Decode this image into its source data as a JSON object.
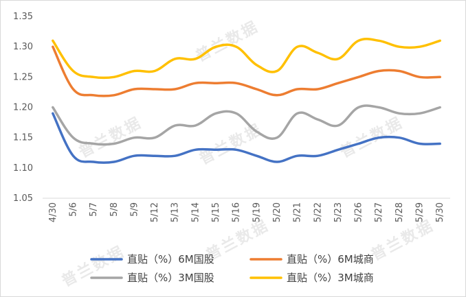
{
  "chart_data": {
    "type": "line",
    "title": "",
    "xlabel": "",
    "ylabel": "",
    "ylim": [
      1.05,
      1.35
    ],
    "yticks": [
      "1.05",
      "1.10",
      "1.15",
      "1.20",
      "1.25",
      "1.30",
      "1.35"
    ],
    "categories": [
      "4/30",
      "5/6",
      "5/7",
      "5/8",
      "5/9",
      "5/12",
      "5/13",
      "5/14",
      "5/15",
      "5/16",
      "5/19",
      "5/20",
      "5/21",
      "5/22",
      "5/23",
      "5/26",
      "5/27",
      "5/28",
      "5/29",
      "5/30"
    ],
    "series": [
      {
        "name": "直贴（%）6M国股",
        "color": "#4472c4",
        "values": [
          1.19,
          1.12,
          1.11,
          1.11,
          1.12,
          1.12,
          1.12,
          1.13,
          1.13,
          1.13,
          1.12,
          1.11,
          1.12,
          1.12,
          1.13,
          1.14,
          1.15,
          1.15,
          1.14,
          1.14
        ]
      },
      {
        "name": "直贴（%）6M城商",
        "color": "#ed7d31",
        "values": [
          1.3,
          1.23,
          1.22,
          1.22,
          1.23,
          1.23,
          1.23,
          1.24,
          1.24,
          1.24,
          1.23,
          1.22,
          1.23,
          1.23,
          1.24,
          1.25,
          1.26,
          1.26,
          1.25,
          1.25
        ]
      },
      {
        "name": "直贴（%）3M国股",
        "color": "#a5a5a5",
        "values": [
          1.2,
          1.15,
          1.14,
          1.14,
          1.15,
          1.15,
          1.17,
          1.17,
          1.19,
          1.19,
          1.16,
          1.15,
          1.19,
          1.18,
          1.17,
          1.2,
          1.2,
          1.19,
          1.19,
          1.2
        ]
      },
      {
        "name": "直贴（%）3M城商",
        "color": "#ffc000",
        "values": [
          1.31,
          1.26,
          1.25,
          1.25,
          1.26,
          1.26,
          1.28,
          1.28,
          1.3,
          1.3,
          1.27,
          1.26,
          1.3,
          1.29,
          1.28,
          1.31,
          1.31,
          1.3,
          1.3,
          1.31
        ]
      }
    ],
    "legend_position": "bottom",
    "grid": false
  },
  "watermark": "普兰数据"
}
